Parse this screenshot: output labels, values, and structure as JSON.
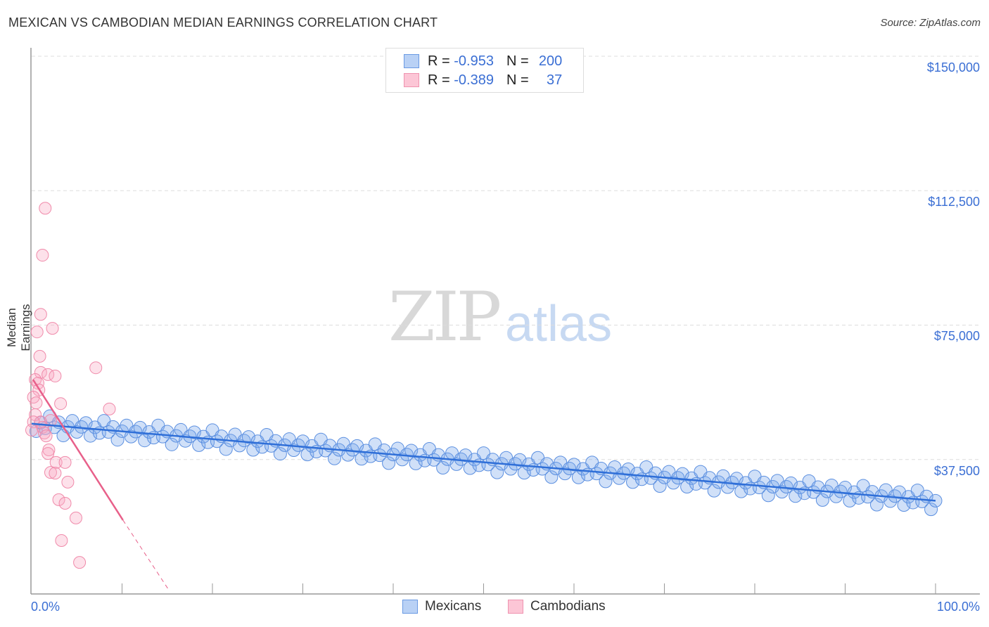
{
  "title": "MEXICAN VS CAMBODIAN MEDIAN EARNINGS CORRELATION CHART",
  "source": "Source: ZipAtlas.com",
  "watermark": {
    "zip": "ZIP",
    "atlas": "atlas"
  },
  "legend": {
    "rows": [
      {
        "r_label": "R =",
        "r_value": "-0.953",
        "n_label": "N =",
        "n_value": "200"
      },
      {
        "r_label": "R =",
        "r_value": "-0.389",
        "n_label": "N =",
        "n_value": "37"
      }
    ]
  },
  "chart_data": {
    "type": "scatter",
    "title": "MEXICAN VS CAMBODIAN MEDIAN EARNINGS CORRELATION CHART",
    "xlabel": "",
    "ylabel": "Median Earnings",
    "xlim": [
      0,
      100
    ],
    "ylim": [
      0,
      152000
    ],
    "x_tick_labels": [
      "0.0%",
      "100.0%"
    ],
    "y_tick_labels": [
      "$150,000",
      "$112,500",
      "$75,000",
      "$37,500"
    ],
    "y_ticks": [
      150000,
      112500,
      75000,
      37500
    ],
    "grid": true,
    "legend_position": "bottom-center",
    "colors": {
      "Mexicans": "#5b8fe0",
      "Cambodians": "#f08aaa",
      "blue_line": "#2f6fd8",
      "pink_line": "#e8608a"
    },
    "series": [
      {
        "name": "Mexicans",
        "x_start": 0.5,
        "x_step": 0.5,
        "y_thousands": [
          45.4,
          47.8,
          46.2,
          49.6,
          46.5,
          47.9,
          44.2,
          46.6,
          48.3,
          45.2,
          46.6,
          47.7,
          44.1,
          46.5,
          44.9,
          48.3,
          45.2,
          46.6,
          43.0,
          45.4,
          47.0,
          43.9,
          45.3,
          46.4,
          42.8,
          45.2,
          43.6,
          47.0,
          43.9,
          45.3,
          41.7,
          44.1,
          45.8,
          42.7,
          44.0,
          45.1,
          41.5,
          43.9,
          42.3,
          45.7,
          42.6,
          44.0,
          40.4,
          42.8,
          44.5,
          41.4,
          42.8,
          43.8,
          40.2,
          42.6,
          41.0,
          44.4,
          41.3,
          42.7,
          39.1,
          41.5,
          43.2,
          40.1,
          41.5,
          42.6,
          38.9,
          41.3,
          39.7,
          43.1,
          40.0,
          41.4,
          37.8,
          40.2,
          41.9,
          38.8,
          40.2,
          41.3,
          37.7,
          40.0,
          38.4,
          41.8,
          38.7,
          40.1,
          36.5,
          38.9,
          40.6,
          37.5,
          38.9,
          40.0,
          36.4,
          38.8,
          37.2,
          40.5,
          37.4,
          38.8,
          35.2,
          37.6,
          39.3,
          36.2,
          37.6,
          38.7,
          35.1,
          37.5,
          35.9,
          39.3,
          36.1,
          37.5,
          33.9,
          36.3,
          38.0,
          34.9,
          36.3,
          37.4,
          33.8,
          36.2,
          34.6,
          38.0,
          34.9,
          36.3,
          32.6,
          35.0,
          36.7,
          33.6,
          35.0,
          36.1,
          32.5,
          34.9,
          33.3,
          36.7,
          33.6,
          35.0,
          31.4,
          33.7,
          35.4,
          32.3,
          33.7,
          34.8,
          31.2,
          33.6,
          32.0,
          35.4,
          32.3,
          33.7,
          30.1,
          32.5,
          34.1,
          31.0,
          32.4,
          33.5,
          29.9,
          32.3,
          30.7,
          34.1,
          31.0,
          32.4,
          28.8,
          31.2,
          32.9,
          29.8,
          31.1,
          32.2,
          28.6,
          31.0,
          29.4,
          32.8,
          29.7,
          31.1,
          27.5,
          29.9,
          31.6,
          28.5,
          29.9,
          30.9,
          27.3,
          29.7,
          28.1,
          31.5,
          28.4,
          29.8,
          26.2,
          28.6,
          30.3,
          27.2,
          28.6,
          29.7,
          26.0,
          28.4,
          26.8,
          30.2,
          27.1,
          28.5,
          24.9,
          27.3,
          29.0,
          25.9,
          27.3,
          28.4,
          24.8,
          27.1,
          25.5,
          28.9,
          25.8,
          27.2,
          23.6,
          26.0
        ],
        "trend": {
          "x": [
            0,
            100
          ],
          "y_thousands": [
            47.5,
            26.0
          ]
        }
      },
      {
        "name": "Cambodians",
        "points": [
          [
            1.5,
            107.6
          ],
          [
            1.2,
            94.5
          ],
          [
            1.0,
            78.0
          ],
          [
            2.3,
            74.1
          ],
          [
            0.6,
            73.1
          ],
          [
            0.9,
            66.3
          ],
          [
            7.1,
            63.1
          ],
          [
            1.0,
            61.8
          ],
          [
            1.8,
            61.2
          ],
          [
            2.6,
            60.8
          ],
          [
            0.4,
            59.8
          ],
          [
            0.7,
            58.8
          ],
          [
            0.8,
            56.9
          ],
          [
            0.2,
            54.9
          ],
          [
            0.5,
            53.3
          ],
          [
            3.2,
            53.1
          ],
          [
            8.6,
            51.6
          ],
          [
            0.4,
            50.0
          ],
          [
            1.0,
            48.0
          ],
          [
            2.1,
            48.4
          ],
          [
            0.2,
            48.0
          ],
          [
            1.2,
            46.5
          ],
          [
            0.0,
            45.7
          ],
          [
            1.4,
            44.9
          ],
          [
            1.6,
            44.1
          ],
          [
            1.9,
            40.2
          ],
          [
            1.8,
            39.2
          ],
          [
            2.7,
            36.7
          ],
          [
            3.7,
            36.7
          ],
          [
            2.1,
            33.9
          ],
          [
            2.6,
            33.7
          ],
          [
            4.0,
            31.2
          ],
          [
            3.0,
            26.3
          ],
          [
            3.7,
            25.3
          ],
          [
            4.9,
            21.2
          ],
          [
            3.3,
            14.9
          ],
          [
            5.3,
            8.8
          ]
        ],
        "trend": {
          "x": [
            0.15,
            10.1
          ],
          "y_thousands": [
            59.8,
            20.6
          ],
          "dashed_to": [
            15.2,
            1.0
          ]
        }
      }
    ]
  }
}
